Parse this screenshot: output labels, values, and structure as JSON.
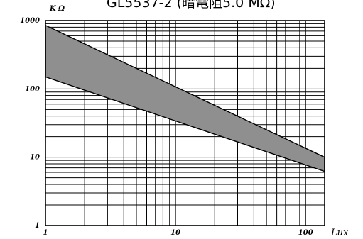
{
  "chart_data": {
    "type": "area",
    "title": "GL5537-2 (暗電阻5.0 MΩ)",
    "x_unit": "Lux",
    "y_unit": "K Ω",
    "x_scale": "log",
    "y_scale": "log",
    "xlim": [
      1,
      140
    ],
    "ylim": [
      1,
      1000
    ],
    "x_ticks": [
      {
        "value": 1,
        "label": "1"
      },
      {
        "value": 10,
        "label": "10"
      },
      {
        "value": 100,
        "label": "100"
      }
    ],
    "y_ticks": [
      {
        "value": 1000,
        "label": "1000"
      },
      {
        "value": 100,
        "label": "100"
      },
      {
        "value": 10,
        "label": "10"
      },
      {
        "value": 1,
        "label": "1"
      }
    ],
    "grid": true,
    "band": {
      "upper": {
        "x": [
          1,
          140
        ],
        "y": [
          850,
          10
        ]
      },
      "lower": {
        "x": [
          1,
          140
        ],
        "y": [
          150,
          6.2
        ]
      }
    }
  }
}
